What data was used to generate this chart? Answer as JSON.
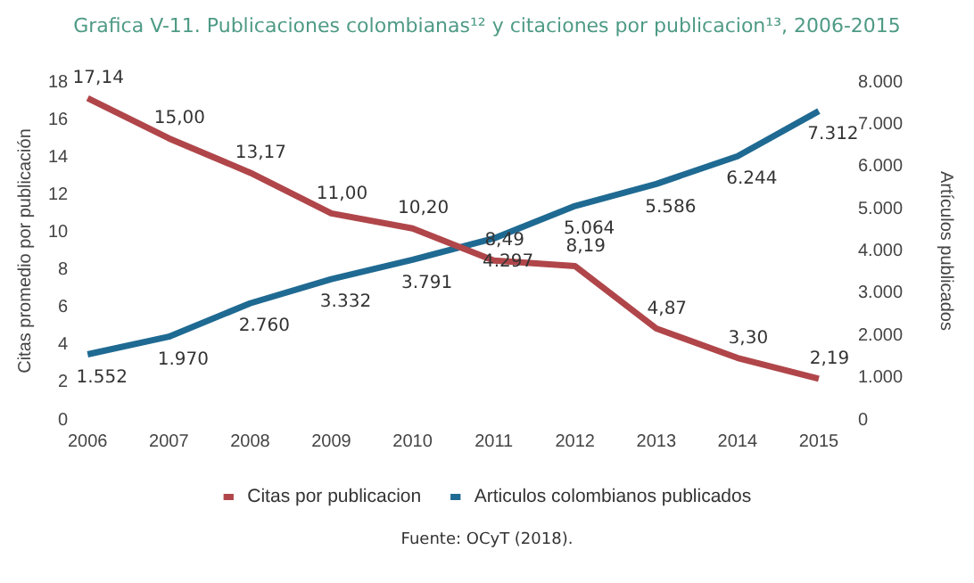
{
  "chart_data": {
    "type": "line",
    "title": "Grafica V-11. Publicaciones colombianas¹² y citaciones por publicacion¹³, 2006-2015",
    "categories": [
      "2006",
      "2007",
      "2008",
      "2009",
      "2010",
      "2011",
      "2012",
      "2013",
      "2014",
      "2015"
    ],
    "series": [
      {
        "name": "Citas por publicacion",
        "color": "#b0464a",
        "values": [
          17.14,
          15.0,
          13.17,
          11.0,
          10.2,
          8.49,
          8.19,
          4.87,
          3.3,
          2.19
        ],
        "value_labels": [
          "17,14",
          "15,00",
          "13,17",
          "11,00",
          "10,20",
          "8,49",
          "8,19",
          "4,87",
          "3,30",
          "2,19"
        ]
      },
      {
        "name": "Articulos colombianos publicados",
        "color": "#1f6a92",
        "axis": "y2",
        "values": [
          1552,
          1970,
          2760,
          3332,
          3791,
          4297,
          5064,
          5586,
          6244,
          7312
        ],
        "value_labels": [
          "1.552",
          "1.970",
          "2.760",
          "3.332",
          "3.791",
          "4.297",
          "5.064",
          "5.586",
          "6.244",
          "7.312"
        ]
      }
    ],
    "ylabel": "Citas promedio por publicación",
    "y2label": "Artículos publicados",
    "ylim": [
      0,
      18
    ],
    "yticks": [
      0,
      2,
      4,
      6,
      8,
      10,
      12,
      14,
      16,
      18
    ],
    "y2lim": [
      0,
      8000
    ],
    "y2ticks": [
      0,
      {
        "value": 1000,
        "label": "1.000"
      },
      {
        "value": 2000,
        "label": "2.000"
      },
      {
        "value": 3000,
        "label": "3.000"
      },
      {
        "value": 4000,
        "label": "4.000"
      },
      {
        "value": 5000,
        "label": "5.000"
      },
      {
        "value": 6000,
        "label": "6.000"
      },
      {
        "value": 7000,
        "label": "7.000"
      },
      {
        "value": 8000,
        "label": "8.000"
      }
    ],
    "grid": false,
    "legend": "bottom",
    "marker": "none",
    "line_style": "solid",
    "annotations": [
      "Fuente: OCyT (2018)."
    ]
  }
}
